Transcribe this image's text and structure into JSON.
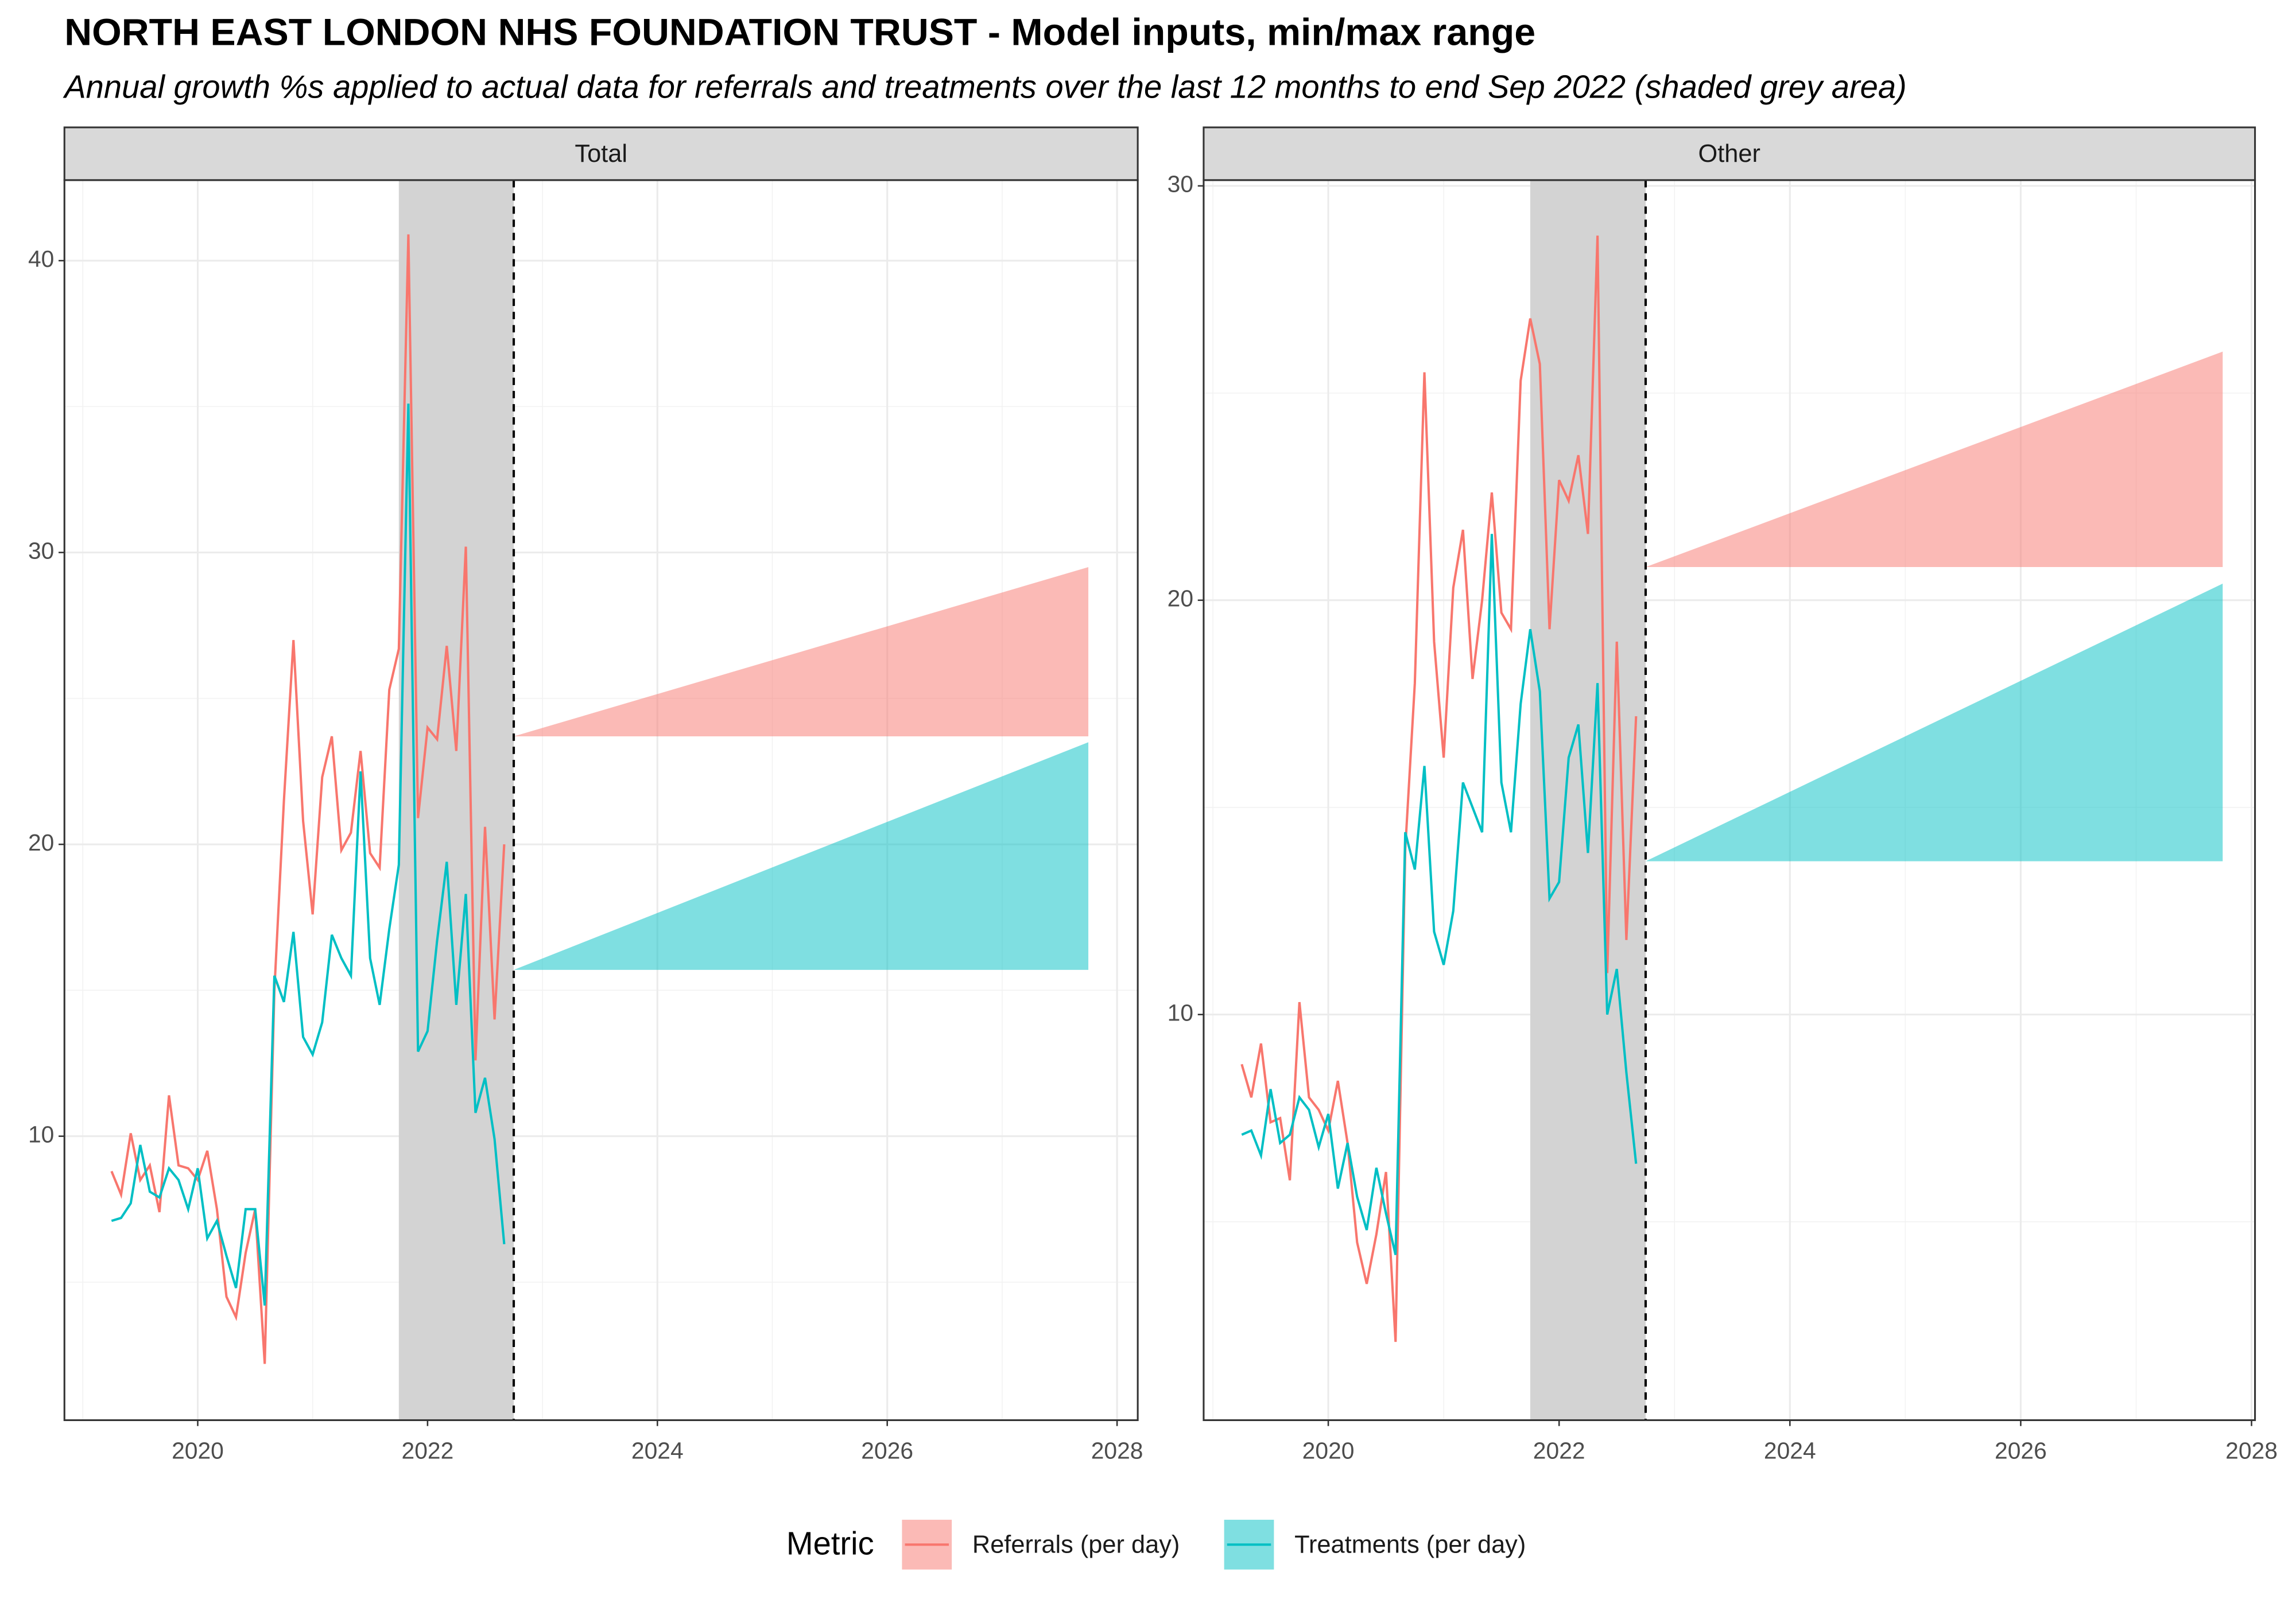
{
  "title": "NORTH EAST LONDON NHS FOUNDATION TRUST - Model inputs, min/max range",
  "subtitle": "Annual growth %s applied to actual data for referrals and treatments over the last 12 months to end Sep 2022 (shaded grey area)",
  "legend_title": "Metric",
  "chart_data": [
    {
      "type": "line",
      "facet": "Total",
      "x": [
        2019.25,
        2019.333,
        2019.417,
        2019.5,
        2019.583,
        2019.667,
        2019.75,
        2019.833,
        2019.917,
        2020,
        2020.083,
        2020.167,
        2020.25,
        2020.333,
        2020.417,
        2020.5,
        2020.583,
        2020.667,
        2020.75,
        2020.833,
        2020.917,
        2021,
        2021.083,
        2021.167,
        2021.25,
        2021.333,
        2021.417,
        2021.5,
        2021.583,
        2021.667,
        2021.75,
        2021.833,
        2021.917,
        2022,
        2022.083,
        2022.167,
        2022.25,
        2022.333,
        2022.417,
        2022.5,
        2022.583,
        2022.667
      ],
      "series": [
        {
          "name": "Referrals (per day)",
          "color": "#F8766D",
          "values": [
            8.8,
            8.0,
            10.1,
            8.5,
            9.0,
            7.4,
            11.4,
            9.0,
            8.9,
            8.5,
            9.5,
            7.5,
            4.5,
            3.8,
            6.0,
            7.5,
            2.2,
            15.0,
            21.5,
            27.0,
            20.8,
            17.6,
            22.3,
            23.7,
            19.8,
            20.4,
            23.2,
            19.7,
            19.2,
            25.3,
            26.7,
            40.9,
            20.9,
            24.0,
            23.6,
            26.8,
            23.2,
            30.2,
            12.6,
            20.6,
            14.0,
            20.0
          ],
          "ribbon": {
            "x": [
              2022.75,
              2027.75
            ],
            "low": [
              23.7,
              23.7
            ],
            "high": [
              23.7,
              29.5
            ]
          }
        },
        {
          "name": "Treatments (per day)",
          "color": "#00BFC4",
          "values": [
            7.1,
            7.2,
            7.7,
            9.7,
            8.1,
            7.9,
            8.9,
            8.5,
            7.5,
            8.9,
            6.5,
            7.1,
            5.9,
            4.8,
            7.5,
            7.5,
            4.2,
            15.5,
            14.6,
            17.0,
            13.4,
            12.8,
            13.9,
            16.9,
            16.1,
            15.5,
            22.5,
            16.1,
            14.5,
            17.1,
            19.3,
            35.1,
            12.9,
            13.6,
            16.7,
            19.4,
            14.5,
            18.3,
            10.8,
            12.0,
            9.9,
            6.3
          ],
          "ribbon": {
            "x": [
              2022.75,
              2027.75
            ],
            "low": [
              15.7,
              15.7
            ],
            "high": [
              15.7,
              23.5
            ]
          }
        }
      ],
      "shade": [
        2021.75,
        2022.75
      ],
      "vline": 2022.75,
      "xlim": [
        2018.84,
        2028.18
      ],
      "xticks": [
        2020,
        2022,
        2024,
        2026,
        2028
      ],
      "xminor": [
        2019,
        2021,
        2023,
        2025,
        2027
      ],
      "ylim": [
        0.27,
        42.76
      ],
      "yticks": [
        10,
        20,
        30,
        40
      ],
      "yminor": [
        5,
        15,
        25,
        35
      ],
      "grid": true
    },
    {
      "type": "line",
      "facet": "Other",
      "x": [
        2019.25,
        2019.333,
        2019.417,
        2019.5,
        2019.583,
        2019.667,
        2019.75,
        2019.833,
        2019.917,
        2020,
        2020.083,
        2020.167,
        2020.25,
        2020.333,
        2020.417,
        2020.5,
        2020.583,
        2020.667,
        2020.75,
        2020.833,
        2020.917,
        2021,
        2021.083,
        2021.167,
        2021.25,
        2021.333,
        2021.417,
        2021.5,
        2021.583,
        2021.667,
        2021.75,
        2021.833,
        2021.917,
        2022,
        2022.083,
        2022.167,
        2022.25,
        2022.333,
        2022.417,
        2022.5,
        2022.583,
        2022.667
      ],
      "series": [
        {
          "name": "Referrals (per day)",
          "color": "#F8766D",
          "values": [
            8.8,
            8.0,
            9.3,
            7.4,
            7.5,
            6.0,
            10.3,
            8.0,
            7.7,
            7.2,
            8.4,
            6.9,
            4.5,
            3.5,
            4.7,
            6.2,
            2.1,
            14.0,
            18.0,
            25.5,
            19.0,
            16.2,
            20.3,
            21.7,
            18.1,
            20.0,
            22.6,
            19.7,
            19.3,
            25.3,
            26.8,
            25.7,
            19.3,
            22.9,
            22.4,
            23.5,
            21.6,
            28.8,
            11.0,
            19.0,
            11.8,
            17.2
          ],
          "ribbon": {
            "x": [
              2022.75,
              2027.75
            ],
            "low": [
              20.8,
              20.8
            ],
            "high": [
              20.8,
              26.0
            ]
          }
        },
        {
          "name": "Treatments (per day)",
          "color": "#00BFC4",
          "values": [
            7.1,
            7.2,
            6.6,
            8.2,
            6.9,
            7.1,
            8.0,
            7.7,
            6.8,
            7.6,
            5.8,
            6.9,
            5.6,
            4.8,
            6.3,
            5.2,
            4.2,
            14.4,
            13.5,
            16.0,
            12.0,
            11.2,
            12.5,
            15.6,
            15.0,
            14.4,
            21.6,
            15.6,
            14.4,
            17.5,
            19.3,
            17.8,
            12.8,
            13.2,
            16.2,
            17.0,
            13.9,
            18.0,
            10.0,
            11.1,
            8.6,
            6.4
          ],
          "ribbon": {
            "x": [
              2022.75,
              2027.75
            ],
            "low": [
              13.7,
              13.7
            ],
            "high": [
              13.7,
              20.4
            ]
          }
        }
      ],
      "shade": [
        2021.75,
        2022.75
      ],
      "vline": 2022.75,
      "xlim": [
        2018.92,
        2028.03
      ],
      "xticks": [
        2020,
        2022,
        2024,
        2026,
        2028
      ],
      "xminor": [
        2019,
        2021,
        2023,
        2025,
        2027
      ],
      "ylim": [
        0.21,
        30.14
      ],
      "yticks": [
        10,
        20,
        30
      ],
      "yminor": [
        5,
        15,
        25
      ],
      "grid": true
    }
  ]
}
